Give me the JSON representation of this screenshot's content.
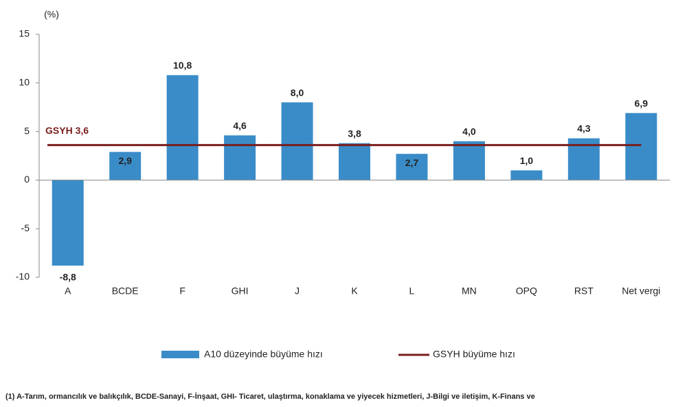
{
  "chart_data": {
    "type": "bar",
    "unit_label": "(%)",
    "categories": [
      "A",
      "BCDE",
      "F",
      "GHI",
      "J",
      "K",
      "L",
      "MN",
      "OPQ",
      "RST",
      "Net vergi"
    ],
    "series": [
      {
        "name": "A10 düzeyinde büyüme hızı",
        "color": "#3a8cc8",
        "values": [
          -8.8,
          2.9,
          10.8,
          4.6,
          8.0,
          3.8,
          2.7,
          4.0,
          1.0,
          4.3,
          6.9
        ],
        "value_labels": [
          "-8,8",
          "2,9",
          "10,8",
          "4,6",
          "8,0",
          "3,8",
          "2,7",
          "4,0",
          "1,0",
          "4,3",
          "6,9"
        ]
      }
    ],
    "reference_line": {
      "name": "GSYH büyüme hızı",
      "value": 3.6,
      "label": "GSYH 3,6",
      "color": "#7a1c1c"
    },
    "ylim": [
      -10,
      15
    ],
    "yticks": [
      -10,
      -5,
      0,
      5,
      10,
      15
    ],
    "footnote": "(1) A-Tarım, ormancılık ve balıkçılık, BCDE-Sanayi, F-İnşaat, GHI- Ticaret, ulaştırma, konaklama ve yiyecek hizmetleri, J-Bilgi ve iletişim, K-Finans ve"
  }
}
